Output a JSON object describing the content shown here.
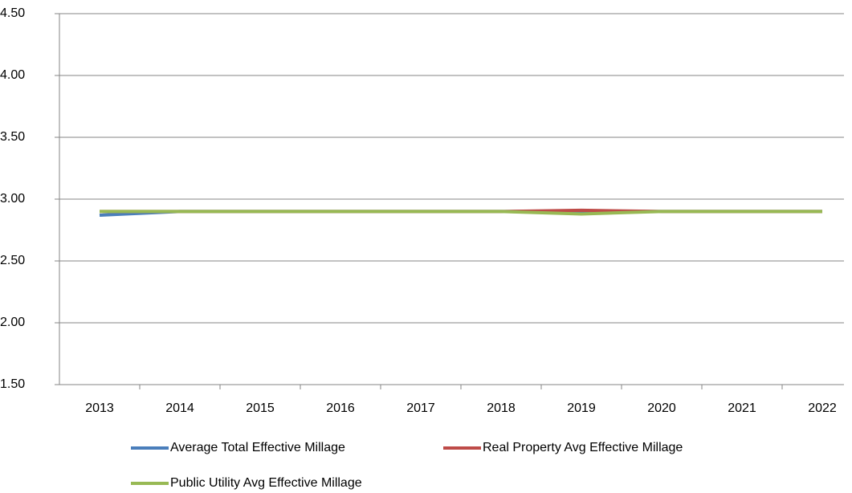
{
  "chart_data": {
    "type": "line",
    "categories": [
      "2013",
      "2014",
      "2015",
      "2016",
      "2017",
      "2018",
      "2019",
      "2020",
      "2021",
      "2022"
    ],
    "series": [
      {
        "name": "Average Total Effective Millage",
        "color": "#4a7ebb",
        "values": [
          2.87,
          2.9,
          2.9,
          2.9,
          2.9,
          2.9,
          2.9,
          2.9,
          2.9,
          2.9
        ]
      },
      {
        "name": "Real Property Avg Effective Millage",
        "color": "#be4b48",
        "values": [
          2.9,
          2.9,
          2.9,
          2.9,
          2.9,
          2.9,
          2.91,
          2.9,
          2.9,
          2.9
        ]
      },
      {
        "name": "Public Utility Avg Effective Millage",
        "color": "#98b954",
        "values": [
          2.9,
          2.9,
          2.9,
          2.9,
          2.9,
          2.9,
          2.88,
          2.9,
          2.9,
          2.9
        ]
      }
    ],
    "ylim": [
      1.5,
      4.5
    ],
    "yticks": [
      {
        "value": 1.5,
        "label": "1.50"
      },
      {
        "value": 2,
        "label": "2.00"
      },
      {
        "value": 2.5,
        "label": "2.50"
      },
      {
        "value": 3,
        "label": "3.00"
      },
      {
        "value": 3.5,
        "label": "3.50"
      },
      {
        "value": 4,
        "label": "4.00"
      },
      {
        "value": 4.5,
        "label": "4.50"
      }
    ],
    "grid": true
  }
}
